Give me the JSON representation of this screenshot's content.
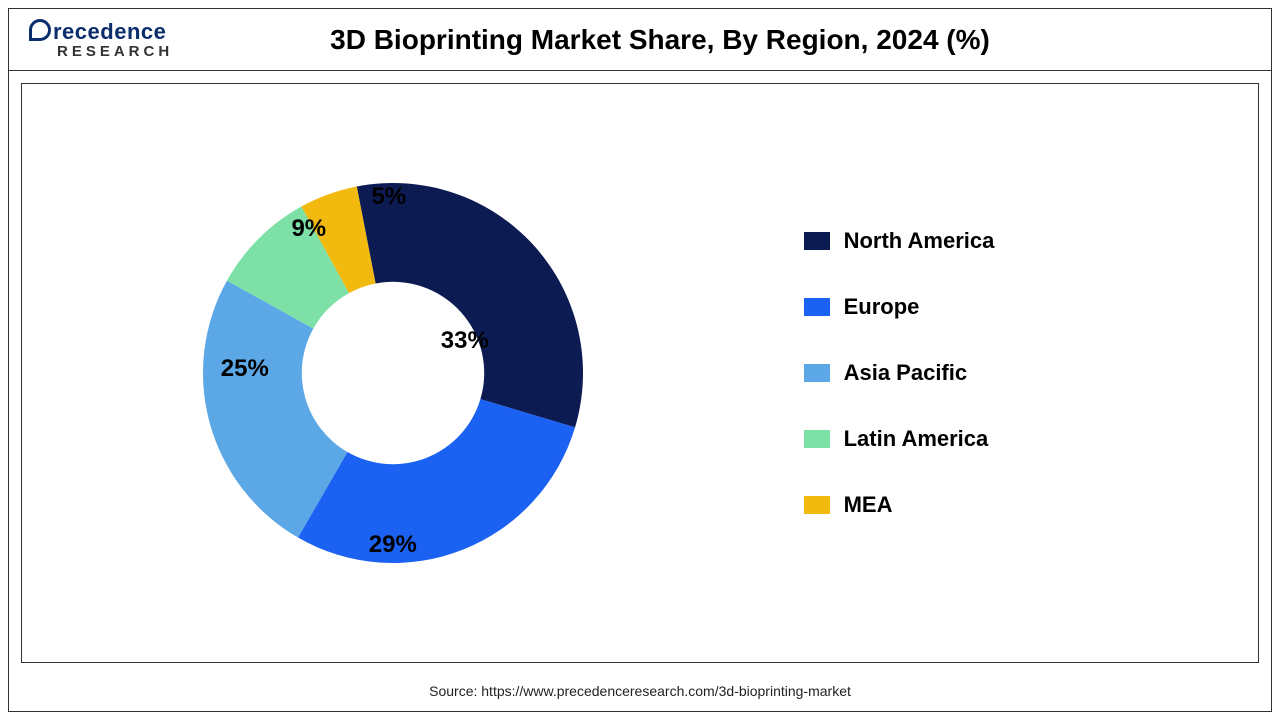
{
  "logo": {
    "top": "recedence",
    "bottom": "RESEARCH"
  },
  "title": "3D Bioprinting Market Share, By Region, 2024 (%)",
  "chart": {
    "type": "donut",
    "inner_radius_ratio": 0.48,
    "label_fontsize": 24,
    "label_color": "#000000",
    "background_color": "#ffffff",
    "start_angle_deg": -11,
    "slices": [
      {
        "label": "North America",
        "value": 33,
        "color": "#0c1b52",
        "display": "33%"
      },
      {
        "label": "Europe",
        "value": 29,
        "color": "#1b62f2",
        "display": "29%"
      },
      {
        "label": "Asia Pacific",
        "value": 25,
        "color": "#5ca8e6",
        "display": "25%"
      },
      {
        "label": "Latin America",
        "value": 9,
        "color": "#7de0a7",
        "display": "9%"
      },
      {
        "label": "MEA",
        "value": 5,
        "color": "#f2b90f",
        "display": "5%"
      }
    ],
    "label_positions": [
      {
        "slice": 0,
        "left_pct": 68,
        "top_pct": 42
      },
      {
        "slice": 1,
        "left_pct": 50,
        "top_pct": 93
      },
      {
        "slice": 2,
        "left_pct": 13,
        "top_pct": 49
      },
      {
        "slice": 3,
        "left_pct": 29,
        "top_pct": 14
      },
      {
        "slice": 4,
        "left_pct": 49,
        "top_pct": 6
      }
    ]
  },
  "legend": {
    "fontsize": 22,
    "swatch_w": 26,
    "swatch_h": 18
  },
  "source": "Source: https://www.precedenceresearch.com/3d-bioprinting-market"
}
